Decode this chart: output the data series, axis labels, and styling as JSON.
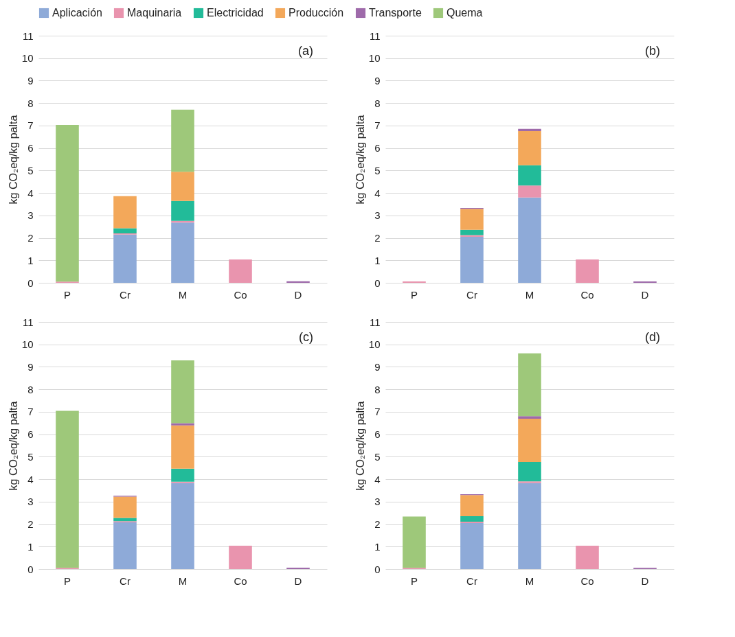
{
  "chart_data": [
    {
      "type": "bar",
      "stacked": true,
      "categories": [
        "P",
        "Cr",
        "M",
        "Co",
        "D"
      ],
      "ylabel": "kg CO₂eq/kg palta",
      "ylim": [
        0,
        11
      ],
      "yticks": [
        0,
        1,
        2,
        3,
        4,
        5,
        6,
        7,
        8,
        9,
        10,
        11
      ],
      "grid": "y",
      "legend": "top",
      "annotations": [
        "(a)"
      ],
      "series": [
        {
          "name": "Aplicación",
          "color": "#8eaad8",
          "values": [
            null,
            2.15,
            2.68,
            null,
            null
          ]
        },
        {
          "name": "Maquinaria",
          "color": "#e994ae",
          "values": [
            0.05,
            0.05,
            0.08,
            1.04,
            null
          ]
        },
        {
          "name": "Electricidad",
          "color": "#22bb99",
          "values": [
            null,
            0.23,
            0.88,
            null,
            null
          ]
        },
        {
          "name": "Producción",
          "color": "#f3a85a",
          "values": [
            null,
            1.43,
            1.3,
            null,
            null
          ]
        },
        {
          "name": "Transporte",
          "color": "#9e6aaa",
          "values": [
            null,
            null,
            null,
            null,
            0.07
          ]
        },
        {
          "name": "Quema",
          "color": "#9ec87a",
          "values": [
            6.98,
            null,
            2.77,
            null,
            null
          ]
        }
      ]
    },
    {
      "type": "bar",
      "stacked": true,
      "categories": [
        "P",
        "Cr",
        "M",
        "Co",
        "D"
      ],
      "ylabel": "kg CO₂eq/kg palta",
      "ylim": [
        0,
        11
      ],
      "yticks": [
        0,
        1,
        2,
        3,
        4,
        5,
        6,
        7,
        8,
        9,
        10,
        11
      ],
      "grid": "y",
      "annotations": [
        "(b)"
      ],
      "series": [
        {
          "color": "#8eaad8",
          "values": [
            null,
            2.05,
            3.8,
            null,
            null
          ]
        },
        {
          "color": "#e994ae",
          "values": [
            0.06,
            0.07,
            0.53,
            1.04,
            null
          ]
        },
        {
          "color": "#22bb99",
          "values": [
            null,
            0.24,
            0.9,
            null,
            null
          ]
        },
        {
          "color": "#f3a85a",
          "values": [
            null,
            0.93,
            1.52,
            null,
            null
          ]
        },
        {
          "color": "#9e6aaa",
          "values": [
            null,
            0.04,
            0.1,
            null,
            0.06
          ]
        }
      ]
    },
    {
      "type": "bar",
      "stacked": true,
      "categories": [
        "P",
        "Cr",
        "M",
        "Co",
        "D"
      ],
      "ylabel": "kg CO₂eq/kg palta",
      "ylim": [
        0,
        11
      ],
      "yticks": [
        0,
        1,
        2,
        3,
        4,
        5,
        6,
        7,
        8,
        9,
        10,
        11
      ],
      "grid": "y",
      "annotations": [
        "(c)"
      ],
      "series": [
        {
          "color": "#8eaad8",
          "values": [
            null,
            2.08,
            3.83,
            null,
            null
          ]
        },
        {
          "color": "#e994ae",
          "values": [
            0.05,
            0.05,
            0.06,
            1.04,
            null
          ]
        },
        {
          "color": "#22bb99",
          "values": [
            null,
            0.15,
            0.58,
            null,
            null
          ]
        },
        {
          "color": "#f3a85a",
          "values": [
            null,
            0.94,
            1.92,
            null,
            null
          ]
        },
        {
          "color": "#9e6aaa",
          "values": [
            null,
            0.04,
            0.1,
            null,
            0.06
          ]
        },
        {
          "color": "#9ec87a",
          "values": [
            6.99,
            null,
            2.8,
            null,
            null
          ]
        }
      ]
    },
    {
      "type": "bar",
      "stacked": true,
      "categories": [
        "P",
        "Cr",
        "M",
        "Co",
        "D"
      ],
      "ylabel": "kg CO₂eq/kg palta",
      "ylim": [
        0,
        11
      ],
      "yticks": [
        0,
        1,
        2,
        3,
        4,
        5,
        6,
        7,
        8,
        9,
        10,
        11
      ],
      "grid": "y",
      "annotations": [
        "(d)"
      ],
      "series": [
        {
          "color": "#8eaad8",
          "values": [
            null,
            2.05,
            3.83,
            null,
            null
          ]
        },
        {
          "color": "#e994ae",
          "values": [
            0.05,
            0.06,
            0.07,
            1.04,
            null
          ]
        },
        {
          "color": "#22bb99",
          "values": [
            null,
            0.24,
            0.87,
            null,
            null
          ]
        },
        {
          "color": "#f3a85a",
          "values": [
            null,
            0.94,
            1.92,
            null,
            null
          ]
        },
        {
          "color": "#9e6aaa",
          "values": [
            null,
            0.04,
            0.12,
            null,
            0.05
          ]
        },
        {
          "color": "#9ec87a",
          "values": [
            2.29,
            null,
            2.79,
            null,
            null
          ]
        }
      ]
    }
  ]
}
